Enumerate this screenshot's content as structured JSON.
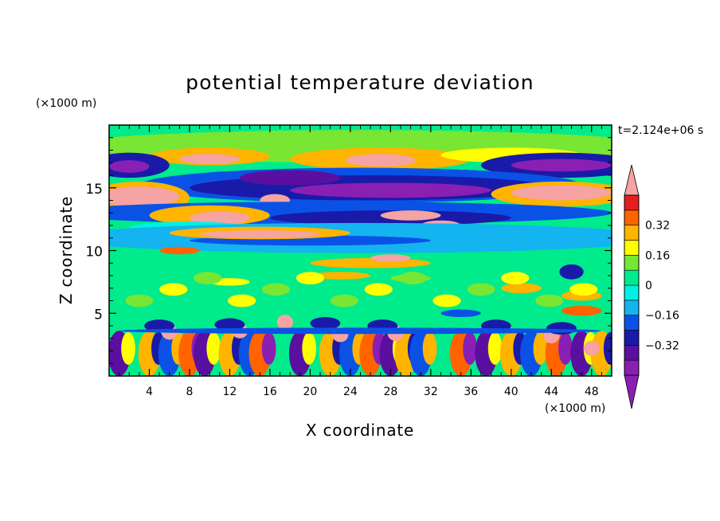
{
  "chart_data": {
    "type": "heatmap",
    "title": "potential temperature deviation",
    "xlabel": "X coordinate",
    "ylabel": "Z coordinate",
    "x_unit": "(×1000 m)",
    "y_unit": "(×1000 m)",
    "time_label": "t=2.124e+06 s",
    "xlim": [
      0,
      50
    ],
    "ylim": [
      0,
      20
    ],
    "x_ticks": [
      4,
      8,
      12,
      16,
      20,
      24,
      28,
      32,
      36,
      40,
      44,
      48
    ],
    "x_tick_labels": [
      "4",
      "8",
      "12",
      "16",
      "20",
      "24",
      "28",
      "32",
      "36",
      "40",
      "44",
      "48"
    ],
    "y_ticks": [
      5,
      10,
      15
    ],
    "y_tick_labels": [
      "5",
      "10",
      "15"
    ],
    "colorbar": {
      "min": -0.48,
      "max": 0.48,
      "levels": [
        -0.48,
        -0.4,
        -0.32,
        -0.24,
        -0.16,
        -0.08,
        0,
        0.08,
        0.16,
        0.24,
        0.32,
        0.4,
        0.48
      ],
      "colors": [
        "#8a1fb4",
        "#5a0fa0",
        "#1a1aa8",
        "#0a52e6",
        "#14b4f0",
        "#00f0e6",
        "#00eb8c",
        "#78e632",
        "#ffff00",
        "#ffb400",
        "#ff6400",
        "#e61e1e",
        "#f5a3a3"
      ],
      "tick_values": [
        0.32,
        0.16,
        0,
        -0.16,
        -0.32
      ],
      "tick_labels": [
        "0.32",
        "0.16",
        "0",
        "−0.16",
        "−0.32"
      ]
    },
    "background_color": "#00eb8c"
  }
}
